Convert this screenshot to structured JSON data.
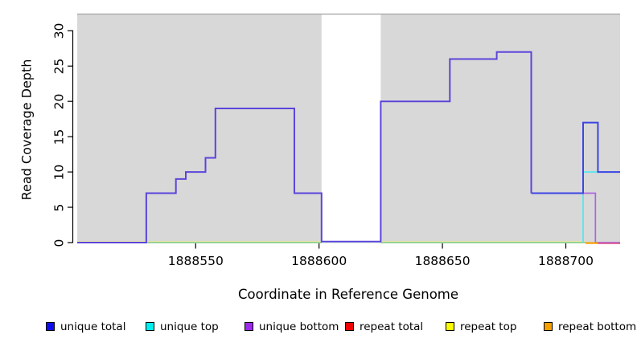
{
  "figure": {
    "x_title": "Coordinate in Reference Genome",
    "y_title": "Read Coverage Depth"
  },
  "chart_data": {
    "type": "line",
    "step": true,
    "title": "",
    "xlabel": "Coordinate in Reference Genome",
    "ylabel": "Read Coverage Depth",
    "xlim": [
      1888502,
      1888722
    ],
    "ylim": [
      0,
      32.5
    ],
    "x_ticks": [
      1888550,
      1888600,
      1888650,
      1888700
    ],
    "y_ticks": [
      0,
      5,
      10,
      15,
      20,
      25,
      30
    ],
    "grid": false,
    "plot_background": "#d8d8d8",
    "plot_top_border": "#a3a3a3",
    "masked_region": {
      "from": 1888601,
      "to": 1888625,
      "color": "#ffffff"
    },
    "series": [
      {
        "name": "unique total",
        "color": "#0d0df0",
        "points": [
          [
            1888502,
            0
          ],
          [
            1888530,
            7
          ],
          [
            1888542,
            9
          ],
          [
            1888546,
            10
          ],
          [
            1888554,
            12
          ],
          [
            1888558,
            19
          ],
          [
            1888590,
            7
          ],
          [
            1888601,
            0
          ],
          [
            1888625,
            20
          ],
          [
            1888653,
            26
          ],
          [
            1888672,
            27
          ],
          [
            1888686,
            7
          ],
          [
            1888707,
            17
          ],
          [
            1888713,
            10
          ],
          [
            1888722,
            10
          ]
        ]
      },
      {
        "name": "unique top",
        "color": "#00f0f0",
        "points": [
          [
            1888502,
            0
          ],
          [
            1888707,
            10
          ],
          [
            1888722,
            10
          ]
        ]
      },
      {
        "name": "unique bottom",
        "color": "#9c2bea",
        "points": [
          [
            1888502,
            0
          ],
          [
            1888530,
            7
          ],
          [
            1888542,
            9
          ],
          [
            1888546,
            10
          ],
          [
            1888554,
            12
          ],
          [
            1888558,
            19
          ],
          [
            1888590,
            7
          ],
          [
            1888601,
            0
          ],
          [
            1888625,
            20
          ],
          [
            1888653,
            26
          ],
          [
            1888672,
            27
          ],
          [
            1888686,
            7
          ],
          [
            1888712,
            0
          ],
          [
            1888722,
            0
          ]
        ]
      },
      {
        "name": "repeat total",
        "color": "#f00000",
        "points": [
          [
            1888502,
            0
          ],
          [
            1888722,
            0
          ]
        ]
      },
      {
        "name": "repeat top",
        "color": "#fcfc00",
        "points": [
          [
            1888502,
            0
          ],
          [
            1888722,
            0
          ]
        ]
      },
      {
        "name": "repeat bottom",
        "color": "#f5a000",
        "points": [
          [
            1888502,
            0
          ],
          [
            1888722,
            0
          ]
        ]
      }
    ],
    "render_lines": [
      {
        "name": "repeat-top-line",
        "layer": 0,
        "color": "#ece8a2",
        "width": 1.2,
        "dy": -1.3,
        "points": [
          [
            1888502,
            0
          ],
          [
            1888708,
            0
          ]
        ]
      },
      {
        "name": "baseline-blend-line",
        "layer": 0,
        "color": "#7cc97f",
        "width": 1.6,
        "dy": 0,
        "points": [
          [
            1888502,
            0
          ],
          [
            1888708,
            0
          ]
        ]
      },
      {
        "name": "unique-top-line",
        "layer": 1,
        "color": "#55e6ee",
        "width": 1.7,
        "dy": 0,
        "points": [
          [
            1888707,
            0
          ],
          [
            1888707,
            10
          ],
          [
            1888722,
            10
          ]
        ]
      },
      {
        "name": "unique-bottom-line",
        "layer": 1,
        "color": "#ab64de",
        "width": 1.7,
        "dy": 0,
        "points": [
          [
            1888686,
            7
          ],
          [
            1888712,
            7
          ],
          [
            1888712,
            0
          ],
          [
            1888722,
            0
          ]
        ]
      },
      {
        "name": "unique-total-line",
        "layer": 1,
        "color": "#5a45da",
        "width": 2,
        "dy": 0,
        "points": [
          [
            1888502,
            0
          ],
          [
            1888530,
            0
          ],
          [
            1888530,
            7
          ],
          [
            1888542,
            7
          ],
          [
            1888542,
            9
          ],
          [
            1888546,
            9
          ],
          [
            1888546,
            10
          ],
          [
            1888554,
            10
          ],
          [
            1888554,
            12
          ],
          [
            1888558,
            12
          ],
          [
            1888558,
            19
          ],
          [
            1888590,
            19
          ],
          [
            1888590,
            7
          ],
          [
            1888601,
            7
          ],
          [
            1888601,
            0.15
          ],
          [
            1888625,
            0.15
          ],
          [
            1888625,
            20
          ],
          [
            1888653,
            20
          ],
          [
            1888653,
            26
          ],
          [
            1888672,
            26
          ],
          [
            1888672,
            27
          ],
          [
            1888686,
            27
          ],
          [
            1888686,
            7
          ]
        ]
      },
      {
        "name": "unique-total-line-right",
        "layer": 1,
        "color": "#3c45e4",
        "width": 2,
        "dy": 0,
        "points": [
          [
            1888686,
            7
          ],
          [
            1888707,
            7
          ],
          [
            1888707,
            17
          ],
          [
            1888713,
            17
          ],
          [
            1888713,
            10
          ],
          [
            1888722,
            10
          ]
        ]
      },
      {
        "name": "repeat-bottom-line",
        "layer": 1,
        "color": "#f5a000",
        "width": 2.2,
        "dy": 0.6,
        "points": [
          [
            1888708,
            0
          ],
          [
            1888713,
            0
          ]
        ]
      },
      {
        "name": "repeat-total-line",
        "layer": 1,
        "color": "#dd5b8e",
        "width": 1.7,
        "dy": 1,
        "points": [
          [
            1888713,
            0
          ],
          [
            1888722,
            0
          ]
        ]
      }
    ],
    "legend": [
      {
        "label": "unique total",
        "color": "#0d0df0"
      },
      {
        "label": "unique top",
        "color": "#00f0f0"
      },
      {
        "label": "unique bottom",
        "color": "#9c2bea"
      },
      {
        "label": "repeat total",
        "color": "#f00000"
      },
      {
        "label": "repeat top",
        "color": "#fcfc00"
      },
      {
        "label": "repeat bottom",
        "color": "#f5a000"
      }
    ],
    "legend_position": "bottom"
  }
}
